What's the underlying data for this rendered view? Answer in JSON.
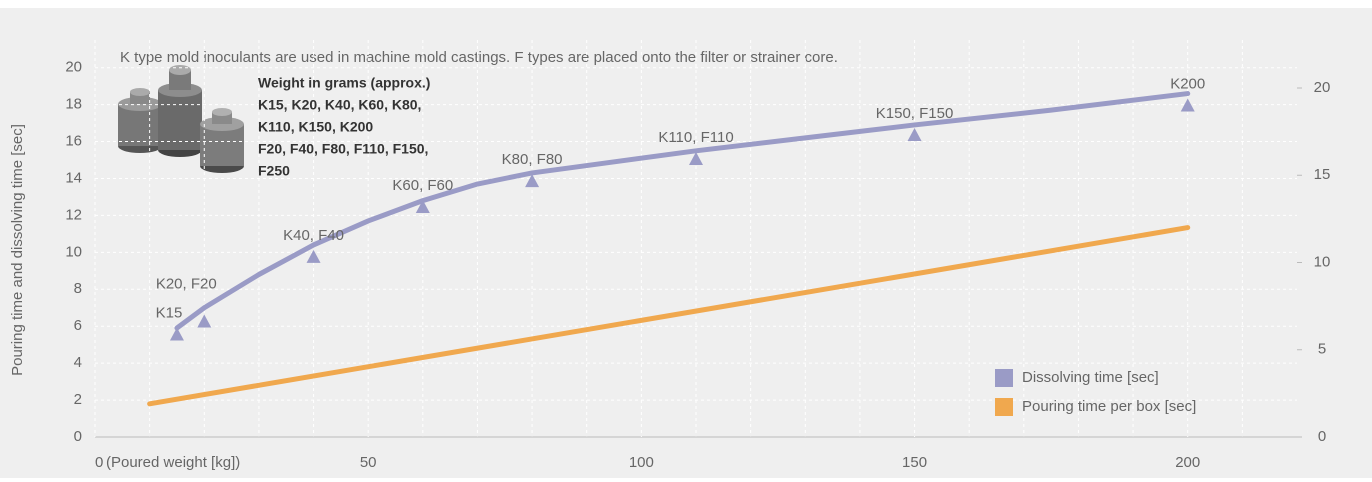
{
  "chart_data": {
    "type": "line",
    "annotations": {
      "note": "K type mold inoculants are used in machine mold castings. F types are placed onto the filter or strainer core.",
      "weight_lines": [
        "Weight in grams (approx.)",
        "K15, K20, K40, K60, K80,",
        "K110, K150, K200",
        "F20, F40, F80, F110, F150,",
        "F250"
      ]
    },
    "ylabel": "Pouring time and dissolving time [sec]",
    "xlabel": "(Poured weight [kg])",
    "xlim": [
      0,
      220
    ],
    "xticks": [
      0,
      50,
      100,
      150,
      200
    ],
    "ylim": [
      0,
      21.5
    ],
    "yticks": [
      0,
      2,
      4,
      6,
      8,
      10,
      12,
      14,
      16,
      18,
      20
    ],
    "y2lim": [
      0,
      22.75
    ],
    "y2ticks": [
      0,
      5,
      10,
      15,
      20
    ],
    "grid": true,
    "legend": "lower right",
    "series": [
      {
        "name": "Dissolving time [sec]",
        "color": "#9a9bc6",
        "x": [
          15,
          20,
          30,
          40,
          50,
          60,
          70,
          80,
          90,
          110,
          130,
          150,
          175,
          200
        ],
        "values": [
          5.9,
          7.0,
          8.8,
          10.4,
          11.7,
          12.8,
          13.7,
          14.3,
          14.7,
          15.5,
          16.2,
          16.9,
          17.7,
          18.6
        ],
        "measured": {
          "x": [
            15,
            20,
            40,
            60,
            80,
            110,
            150,
            200
          ],
          "values": [
            5.5,
            6.2,
            9.7,
            12.4,
            13.8,
            15.0,
            16.3,
            17.9
          ],
          "labels": [
            "K15",
            "K20, F20",
            "K40, F40",
            "K60, F60",
            "K80, F80",
            "K110, F110",
            "K150, F150",
            "K200"
          ]
        }
      },
      {
        "name": "Pouring time per box [sec]",
        "color": "#f0a84e",
        "axis": "y2",
        "x": [
          10,
          200
        ],
        "values": [
          1.9,
          12.0
        ]
      }
    ]
  }
}
